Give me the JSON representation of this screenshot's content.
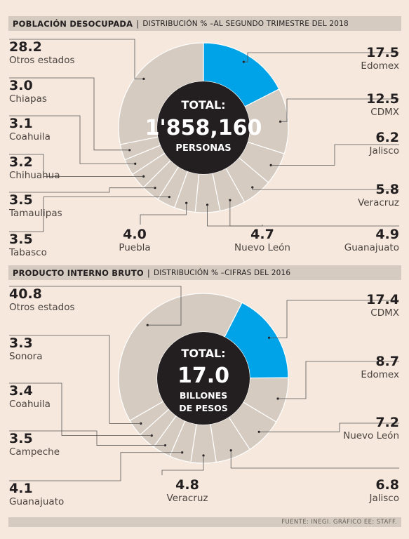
{
  "charts": [
    {
      "header": {
        "title": "POBLACIÓN DESOCUPADA",
        "separator": "|",
        "subtitle": "DISTRIBUCIÓN % –AL SEGUNDO TRIMESTRE DEL 2018"
      },
      "center": {
        "line1": "TOTAL:",
        "line2": "1'858,160",
        "line3": "PERSONAS"
      }
    },
    {
      "header": {
        "title": "PRODUCTO INTERNO BRUTO",
        "separator": "|",
        "subtitle": "DISTRIBUCIÓN % –CIFRAS DEL 2016"
      },
      "center": {
        "line1": "TOTAL:",
        "line2": "17.0",
        "line3": "BILLONES",
        "line4": "DE PESOS"
      }
    }
  ],
  "footer": {
    "source": "FUENTE: INEGI. GRÁFICO EE: STAFF."
  },
  "colors": {
    "highlight": "#00a3e8",
    "segment": "#d6cbc1",
    "segment_stroke": "#ffffff",
    "center": "#231f20",
    "leader": "#555555",
    "background": "#f6e8dc"
  },
  "chart_data": [
    {
      "type": "pie",
      "categories": [
        "Edomex",
        "CDMX",
        "Jalisco",
        "Veracruz",
        "Guanajuato",
        "Nuevo León",
        "Puebla",
        "Tabasco",
        "Tamaulipas",
        "Chihuahua",
        "Coahuila",
        "Chiapas",
        "Otros estados"
      ],
      "values": [
        17.5,
        12.5,
        6.2,
        5.8,
        4.9,
        4.7,
        4.0,
        3.5,
        3.5,
        3.2,
        3.1,
        3.0,
        28.2
      ],
      "value_labels": [
        "17.5",
        "12.5",
        "6.2",
        "5.8",
        "4.9",
        "4.7",
        "4.0",
        "3.5",
        "3.5",
        "3.2",
        "3.1",
        "3.0",
        "28.2"
      ],
      "highlight": "Edomex",
      "donut": true
    },
    {
      "type": "pie",
      "categories": [
        "CDMX",
        "Edomex",
        "Nuevo León",
        "Jalisco",
        "Veracruz",
        "Guanajuato",
        "Campeche",
        "Coahuila",
        "Sonora",
        "Otros estados"
      ],
      "values": [
        17.4,
        8.7,
        7.2,
        6.8,
        4.8,
        4.1,
        3.5,
        3.4,
        3.3,
        40.8
      ],
      "value_labels": [
        "17.4",
        "8.7",
        "7.2",
        "6.8",
        "4.8",
        "4.1",
        "3.5",
        "3.4",
        "3.3",
        "40.8"
      ],
      "highlight": "CDMX",
      "donut": true
    }
  ]
}
